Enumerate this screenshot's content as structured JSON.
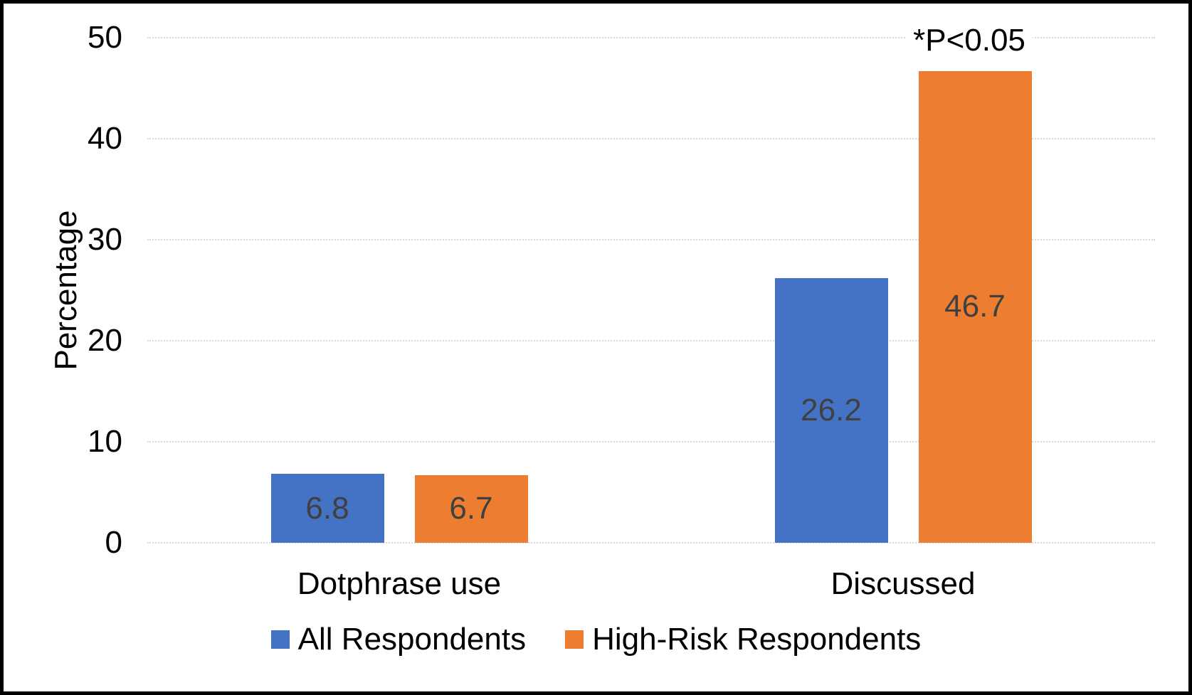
{
  "chart_data": {
    "type": "bar",
    "categories": [
      "Dotphrase use",
      "Discussed"
    ],
    "series": [
      {
        "name": "All Respondents",
        "values": [
          6.8,
          26.2
        ],
        "color": "#4472C4"
      },
      {
        "name": "High-Risk Respondents",
        "values": [
          6.7,
          46.7
        ],
        "color": "#ED7D31"
      }
    ],
    "title": "",
    "xlabel": "",
    "ylabel": "Percentage",
    "ylim": [
      0,
      50
    ],
    "yticks": [
      0,
      10,
      20,
      30,
      40,
      50
    ],
    "grid": "horizontal-dotted",
    "legend_position": "bottom-center",
    "value_labels": "inside-center",
    "annotation": "*P<0.05",
    "colors": {
      "gridline": "#D9D9D9",
      "value_label_text": "#404040",
      "axis_text": "#000000",
      "figure_border": "#000000",
      "background": "#FFFFFF"
    }
  }
}
